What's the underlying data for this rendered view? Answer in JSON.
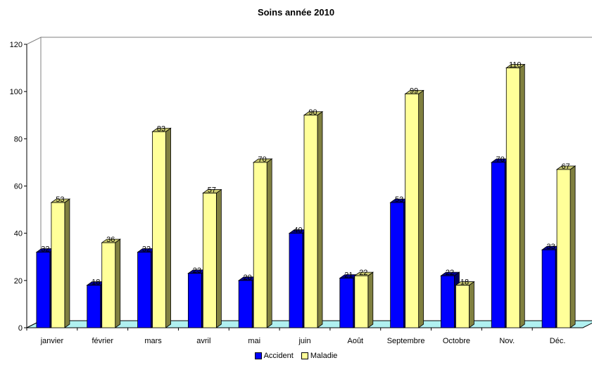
{
  "chart_data": {
    "type": "bar",
    "title": "Soins année 2010",
    "xlabel": "",
    "ylabel": "",
    "ylim": [
      0,
      120
    ],
    "yticks": [
      0,
      20,
      40,
      60,
      80,
      100,
      120
    ],
    "categories": [
      "janvier",
      "février",
      "mars",
      "avril",
      "mai",
      "juin",
      "Août",
      "Septembre",
      "Octobre",
      "Nov.",
      "Déc."
    ],
    "series": [
      {
        "name": "Accident",
        "values": [
          32,
          18,
          32,
          23,
          20,
          40,
          21,
          53,
          22,
          70,
          33
        ],
        "color": "#0000ff",
        "side_color": "#000060",
        "top_color": "#000090"
      },
      {
        "name": "Maladie",
        "values": [
          53,
          36,
          83,
          57,
          70,
          90,
          22,
          99,
          18,
          110,
          67
        ],
        "color": "#ffff99",
        "side_color": "#808040",
        "top_color": "#c8c870"
      }
    ],
    "grid": false,
    "legend_position": "bottom",
    "floor_color": "#b0f0f0",
    "wall_color": "#ffffff"
  }
}
